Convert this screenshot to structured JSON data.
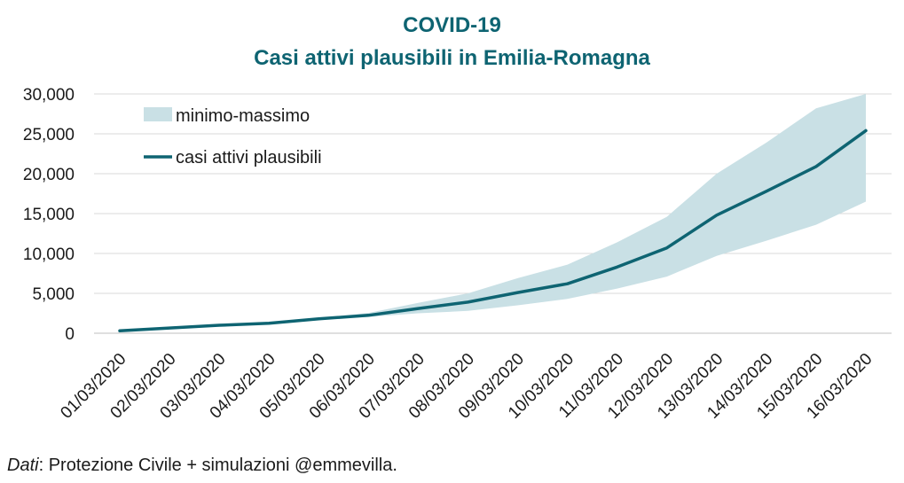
{
  "title_line1": "COVID-19",
  "title_line2": "Casi attivi plausibili in Emilia-Romagna",
  "source_prefix": "Dati",
  "source_rest": ": Protezione Civile + simulazioni @emmevilla.",
  "colors": {
    "title": "#0e6472",
    "line": "#0e6472",
    "band": "#c9e0e5",
    "grid": "#d9d9d9"
  },
  "chart_data": {
    "type": "line",
    "categories": [
      "01/03/2020",
      "02/03/2020",
      "03/03/2020",
      "04/03/2020",
      "05/03/2020",
      "06/03/2020",
      "07/03/2020",
      "08/03/2020",
      "09/03/2020",
      "10/03/2020",
      "11/03/2020",
      "12/03/2020",
      "13/03/2020",
      "14/03/2020",
      "15/03/2020",
      "16/03/2020"
    ],
    "ylim": [
      0,
      30000
    ],
    "yticks": [
      0,
      5000,
      10000,
      15000,
      20000,
      25000,
      30000
    ],
    "ytick_labels": [
      "0",
      "5,000",
      "10,000",
      "15,000",
      "20,000",
      "25,000",
      "30,000"
    ],
    "series": [
      {
        "name": "casi attivi plausibili",
        "values": [
          300,
          650,
          1000,
          1250,
          1800,
          2250,
          3100,
          3900,
          5100,
          6200,
          8300,
          10700,
          14800,
          17800,
          20900,
          25400
        ]
      },
      {
        "name": "minimo",
        "values": [
          300,
          650,
          1000,
          1250,
          1750,
          2050,
          2500,
          2800,
          3500,
          4300,
          5600,
          7100,
          9700,
          11600,
          13600,
          16500
        ]
      },
      {
        "name": "massimo",
        "values": [
          300,
          650,
          1000,
          1250,
          1900,
          2550,
          3800,
          5000,
          6900,
          8600,
          11400,
          14600,
          20000,
          23900,
          28200,
          30000
        ]
      }
    ],
    "legend": [
      {
        "label": "minimo-massimo",
        "kind": "band"
      },
      {
        "label": "casi attivi plausibili",
        "kind": "line"
      }
    ],
    "legend_position": "top-left",
    "grid": true
  }
}
